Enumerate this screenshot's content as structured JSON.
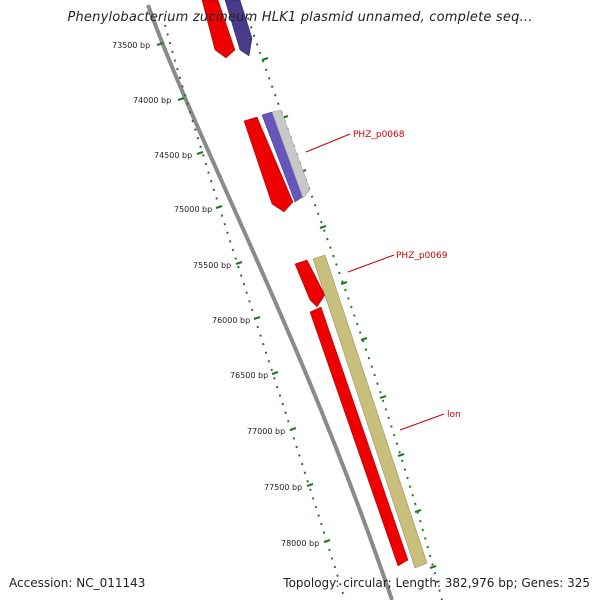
{
  "title": "Phenylobacterium zucineum HLK1 plasmid unnamed, complete seq...",
  "accession": "Accession: NC_011143",
  "summary": "Topology: circular; Length: 382,976 bp; Genes: 325",
  "colors": {
    "backbone": "#8a8a8a",
    "tick_ruler": "#1e7a1e",
    "gene_forward": "#ee0000",
    "gene_blue": "#6655aa",
    "gene_grey": "#c0c0c0",
    "gene_khaki": "#c9bf7d",
    "label_text": "#cc0000"
  },
  "ruler": [
    {
      "bp": 73500,
      "label": "73500 bp"
    },
    {
      "bp": 74000,
      "label": "74000 bp"
    },
    {
      "bp": 74500,
      "label": "74500 bp"
    },
    {
      "bp": 75000,
      "label": "75000 bp"
    },
    {
      "bp": 75500,
      "label": "75500 bp"
    },
    {
      "bp": 76000,
      "label": "76000 bp"
    },
    {
      "bp": 76500,
      "label": "76500 bp"
    },
    {
      "bp": 77000,
      "label": "77000 bp"
    },
    {
      "bp": 77500,
      "label": "77500 bp"
    },
    {
      "bp": 78000,
      "label": "78000 bp"
    }
  ],
  "gene_labels": [
    {
      "text": "PHZ_p0068"
    },
    {
      "text": "PHZ_p0069"
    },
    {
      "text": "lon"
    }
  ]
}
